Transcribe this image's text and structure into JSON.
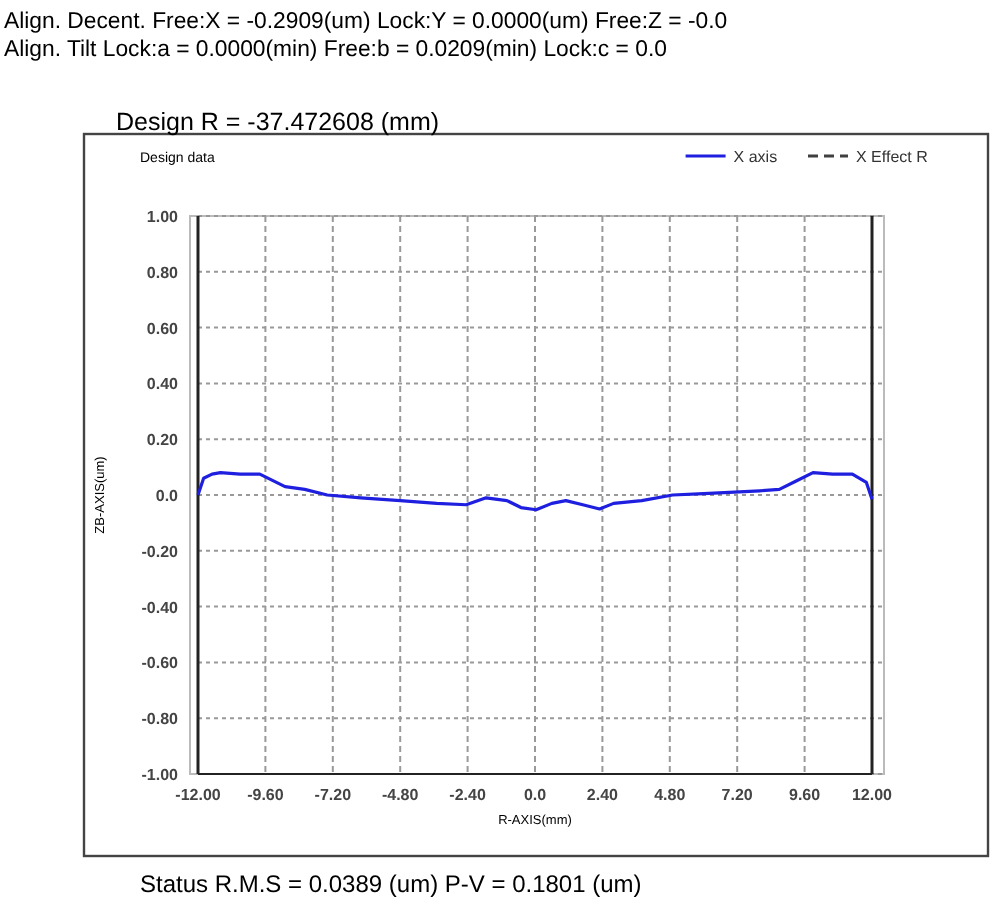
{
  "chart_data": {
    "type": "line",
    "title": "Design   R = -37.472608 (mm)",
    "subtitle": "Design data",
    "xlabel": "R-AXIS(mm)",
    "ylabel": "ZB-AXIS(um)",
    "annotations": [
      "Align. Decent.  Free:X =  -0.2909(um)    Lock:Y =   0.0000(um)    Free:Z =  -0.0",
      "Align. Tilt         Lock:a =  0.0000(min)   Free:b =  0.0209(min)    Lock:c =  0.0",
      "Status    R.M.S = 0.0389 (um)  P-V = 0.1801 (um)"
    ],
    "series": [
      {
        "name": "X axis",
        "color": "#1f1fe0",
        "line_style": "solid",
        "x": [
          -12,
          -11.8,
          -11.5,
          -11.2,
          -10.5,
          -9.8,
          -8.9,
          -8.2,
          -7.4,
          -6.2,
          -4.8,
          -3.5,
          -2.45,
          -1.74,
          -1,
          -0.5,
          0.04,
          0.6,
          1.1,
          1.7,
          2.3,
          2.8,
          3.8,
          4.9,
          6,
          7.1,
          8,
          8.7,
          9.3,
          9.9,
          10.6,
          11.3,
          11.8,
          12
        ],
        "values": [
          0.0,
          0.06,
          0.075,
          0.08,
          0.075,
          0.075,
          0.03,
          0.02,
          0.0,
          -0.01,
          -0.02,
          -0.03,
          -0.035,
          -0.01,
          -0.02,
          -0.045,
          -0.053,
          -0.03,
          -0.02,
          -0.035,
          -0.05,
          -0.03,
          -0.02,
          0.0,
          0.005,
          0.01,
          0.015,
          0.02,
          0.05,
          0.08,
          0.075,
          0.075,
          0.045,
          -0.015
        ]
      },
      {
        "name": "X Effect R",
        "color": "#404040",
        "line_style": "dashed"
      }
    ],
    "xlim": [
      -12,
      12
    ],
    "ylim": [
      -1,
      1
    ],
    "xticks": [
      {
        "value": -12,
        "label": "-12.00"
      },
      {
        "value": -9.6,
        "label": "-9.60"
      },
      {
        "value": -7.2,
        "label": "-7.20"
      },
      {
        "value": -4.8,
        "label": "-4.80"
      },
      {
        "value": -2.4,
        "label": "-2.40"
      },
      {
        "value": 0,
        "label": "0.0"
      },
      {
        "value": 2.4,
        "label": "2.40"
      },
      {
        "value": 4.8,
        "label": "4.80"
      },
      {
        "value": 7.2,
        "label": "7.20"
      },
      {
        "value": 9.6,
        "label": "9.60"
      },
      {
        "value": 12,
        "label": "12.00"
      }
    ],
    "yticks": [
      {
        "value": 1,
        "label": "1.00"
      },
      {
        "value": 0.8,
        "label": "0.80"
      },
      {
        "value": 0.6,
        "label": "0.60"
      },
      {
        "value": 0.4,
        "label": "0.40"
      },
      {
        "value": 0.2,
        "label": "0.20"
      },
      {
        "value": 0,
        "label": "0.0"
      },
      {
        "value": -0.2,
        "label": "-0.20"
      },
      {
        "value": -0.4,
        "label": "-0.40"
      },
      {
        "value": -0.6,
        "label": "-0.60"
      },
      {
        "value": -0.8,
        "label": "-0.80"
      },
      {
        "value": -1,
        "label": "-1.00"
      }
    ],
    "grid": true,
    "legend": "top right"
  }
}
